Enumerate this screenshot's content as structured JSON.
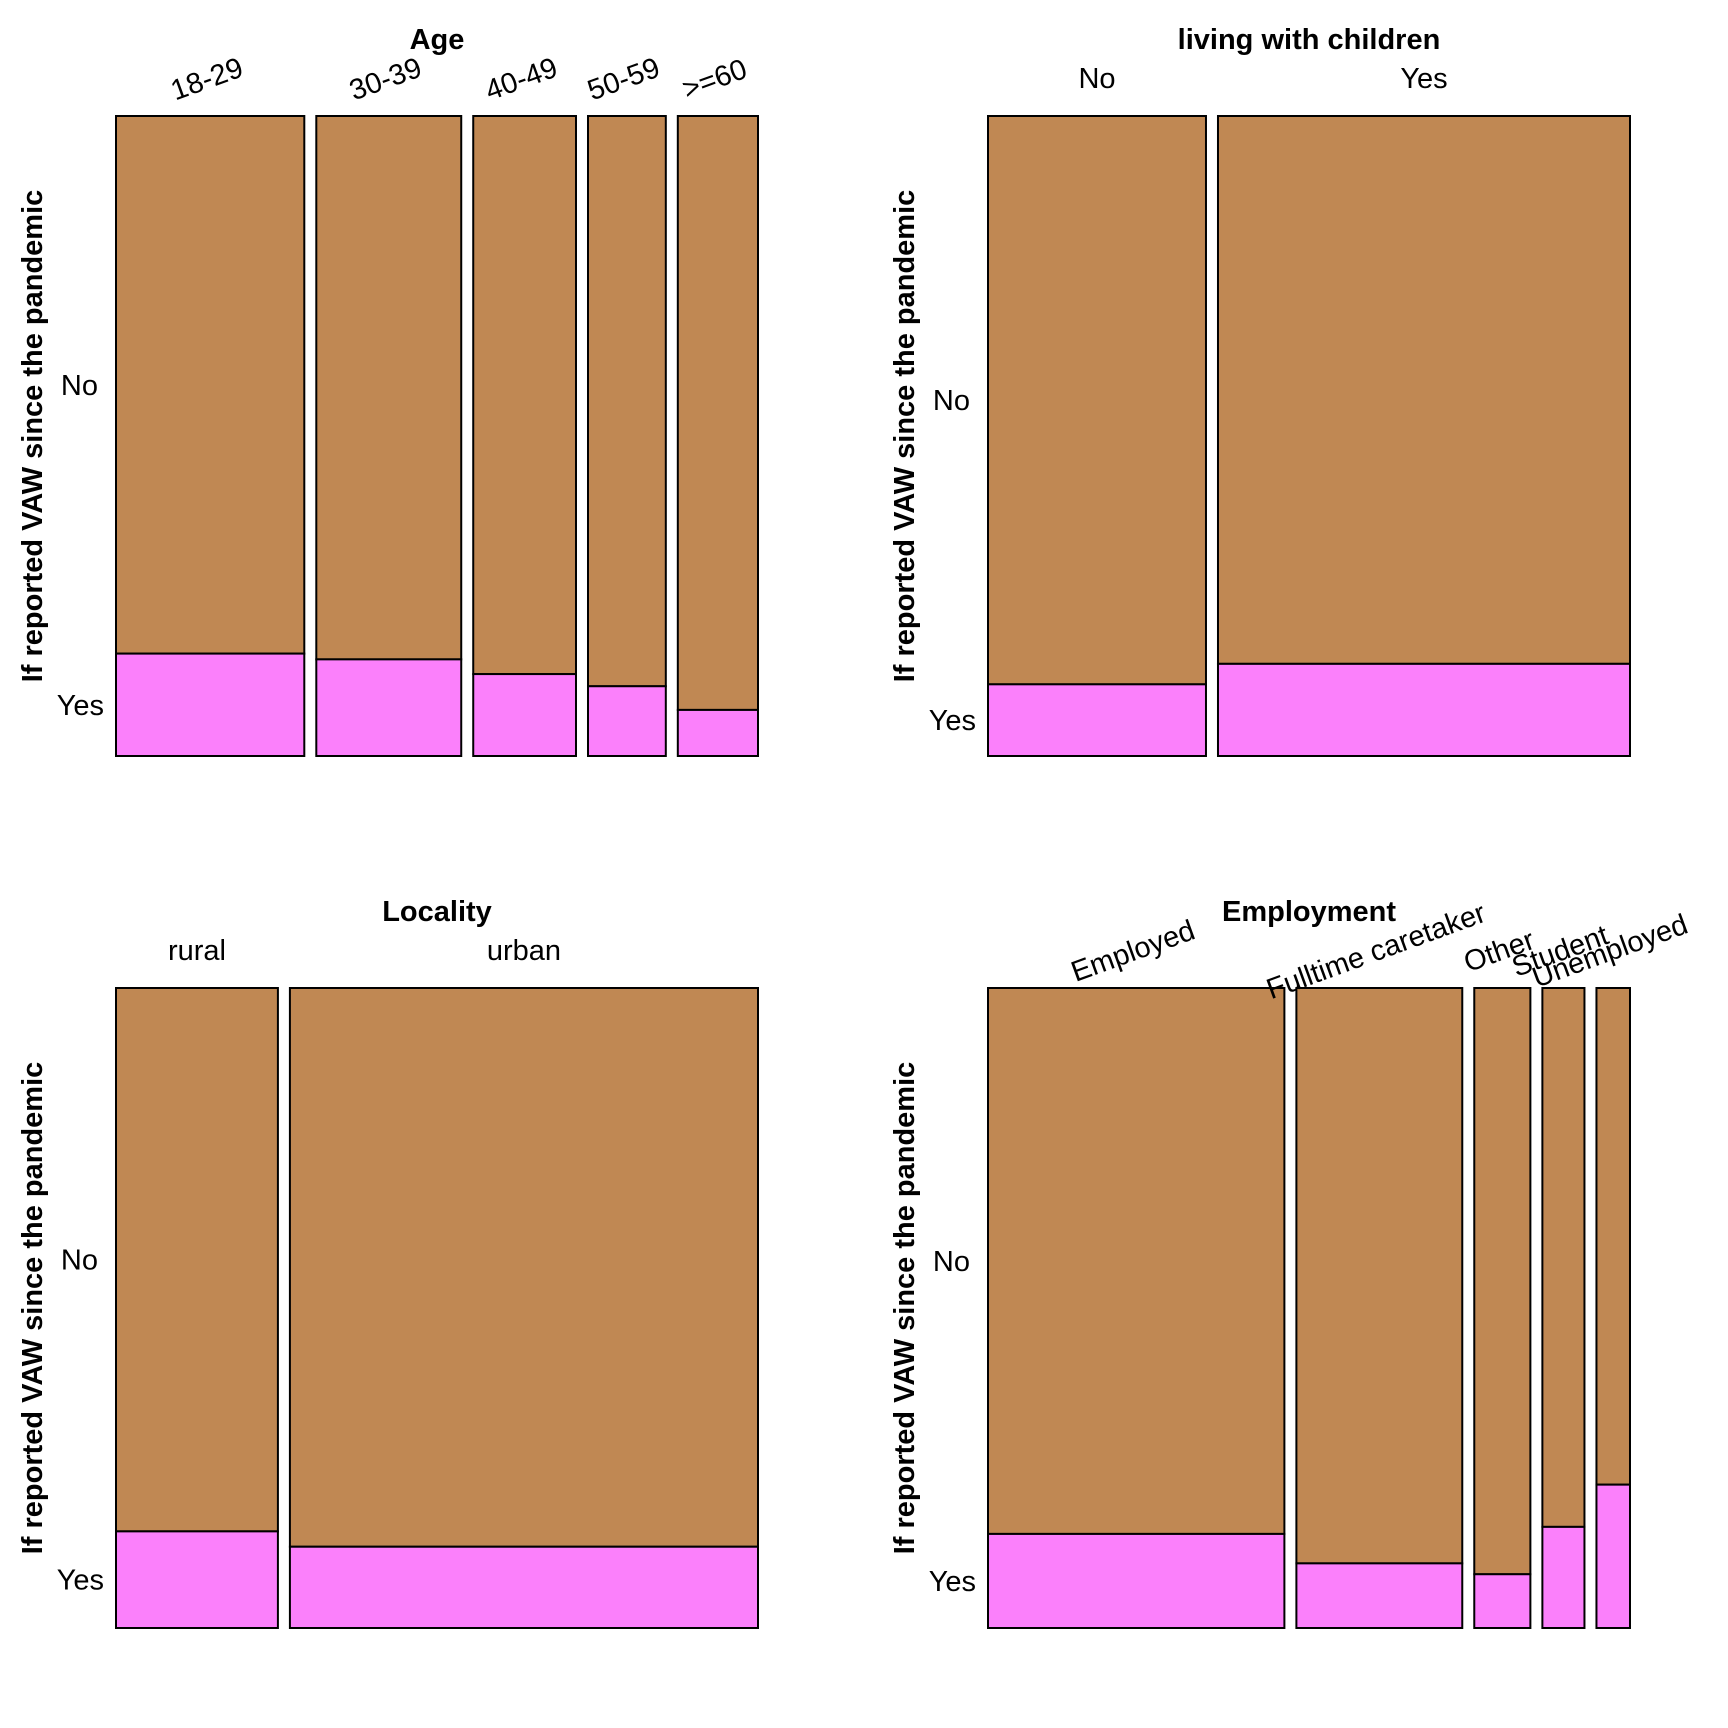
{
  "colors": {
    "no": "#C08853",
    "yes": "#FB80FB",
    "stroke": "#000000"
  },
  "chart_data": [
    {
      "type": "mosaic",
      "title": "Age",
      "ylabel": "If reported VAW since the pandemic",
      "levels": [
        "Yes",
        "No"
      ],
      "categories": [
        "18-29",
        "30-39",
        "40-49",
        "50-59",
        ">=60"
      ],
      "widths": [
        0.317,
        0.244,
        0.173,
        0.131,
        0.135
      ],
      "yes_share": [
        0.16,
        0.151,
        0.128,
        0.109,
        0.072
      ],
      "rotate_labels": true
    },
    {
      "type": "mosaic",
      "title": "living with children",
      "ylabel": "If reported VAW since the pandemic",
      "levels": [
        "Yes",
        "No"
      ],
      "categories": [
        "No",
        "Yes"
      ],
      "widths": [
        0.346,
        0.654
      ],
      "yes_share": [
        0.112,
        0.144
      ],
      "rotate_labels": false
    },
    {
      "type": "mosaic",
      "title": "Locality",
      "ylabel": "If reported VAW since the pandemic",
      "levels": [
        "Yes",
        "No"
      ],
      "categories": [
        "rural",
        "urban"
      ],
      "widths": [
        0.257,
        0.743
      ],
      "yes_share": [
        0.151,
        0.127
      ],
      "rotate_labels": false
    },
    {
      "type": "mosaic",
      "title": "Employment",
      "ylabel": "If reported VAW since the pandemic",
      "levels": [
        "Yes",
        "No"
      ],
      "categories": [
        "Employed",
        "Fulltime caretaker",
        "Other",
        "Student",
        "Unemployed"
      ],
      "widths": [
        0.486,
        0.272,
        0.092,
        0.069,
        0.055
      ],
      "yes_share": [
        0.147,
        0.101,
        0.084,
        0.158,
        0.224
      ],
      "rotate_labels": true
    }
  ]
}
